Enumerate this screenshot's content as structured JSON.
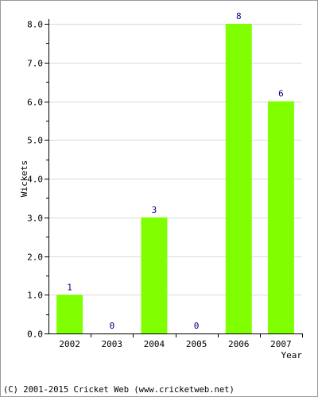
{
  "chart_data": {
    "type": "bar",
    "categories": [
      "2002",
      "2003",
      "2004",
      "2005",
      "2006",
      "2007"
    ],
    "values": [
      1,
      0,
      3,
      0,
      8,
      6
    ],
    "data_labels": [
      "1",
      "0",
      "3",
      "0",
      "8",
      "6"
    ],
    "xlabel": "Year",
    "ylabel": "Wickets",
    "ylim": [
      0,
      8
    ],
    "yticks": [
      "0.0",
      "1.0",
      "2.0",
      "3.0",
      "4.0",
      "5.0",
      "6.0",
      "7.0",
      "8.0"
    ],
    "grid": true,
    "bar_color": "#80ff00",
    "label_color": "#000080"
  },
  "footer": {
    "copyright": "(C) 2001-2015 Cricket Web (www.cricketweb.net)"
  }
}
